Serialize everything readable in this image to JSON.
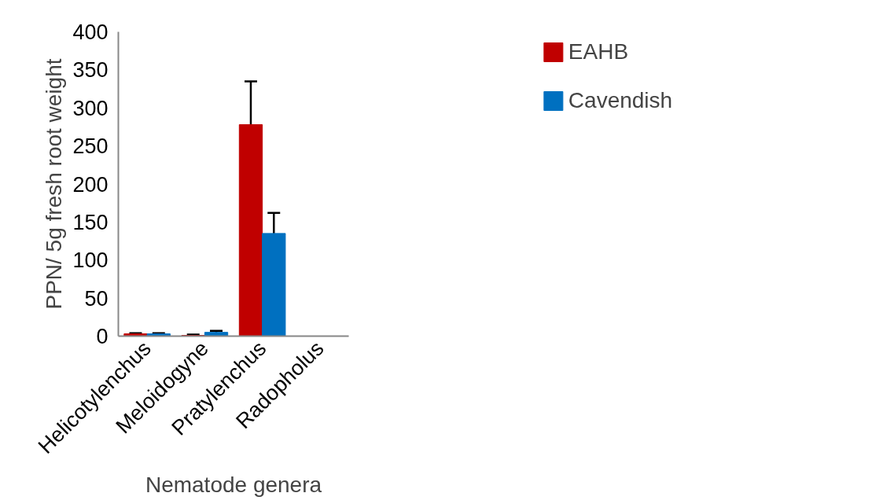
{
  "chart_data": {
    "type": "bar",
    "xlabel": "Nematode genera",
    "ylabel": "PPN/ 5g fresh root weight",
    "categories": [
      "Helicotylenchus",
      "Meloidogyne",
      "Pratylenchus",
      "Radopholus"
    ],
    "series": [
      {
        "name": "EAHB",
        "color": "#c00000",
        "values": [
          3,
          1,
          278,
          0
        ],
        "errors": [
          1,
          1,
          57,
          null
        ]
      },
      {
        "name": "Cavendish",
        "color": "#0070c0",
        "values": [
          3,
          5,
          135,
          0
        ],
        "errors": [
          1,
          2,
          27,
          null
        ]
      }
    ],
    "ylim": [
      0,
      400
    ],
    "yticks": [
      0,
      50,
      100,
      150,
      200,
      250,
      300,
      350,
      400
    ],
    "grid": false,
    "legend": "right"
  }
}
